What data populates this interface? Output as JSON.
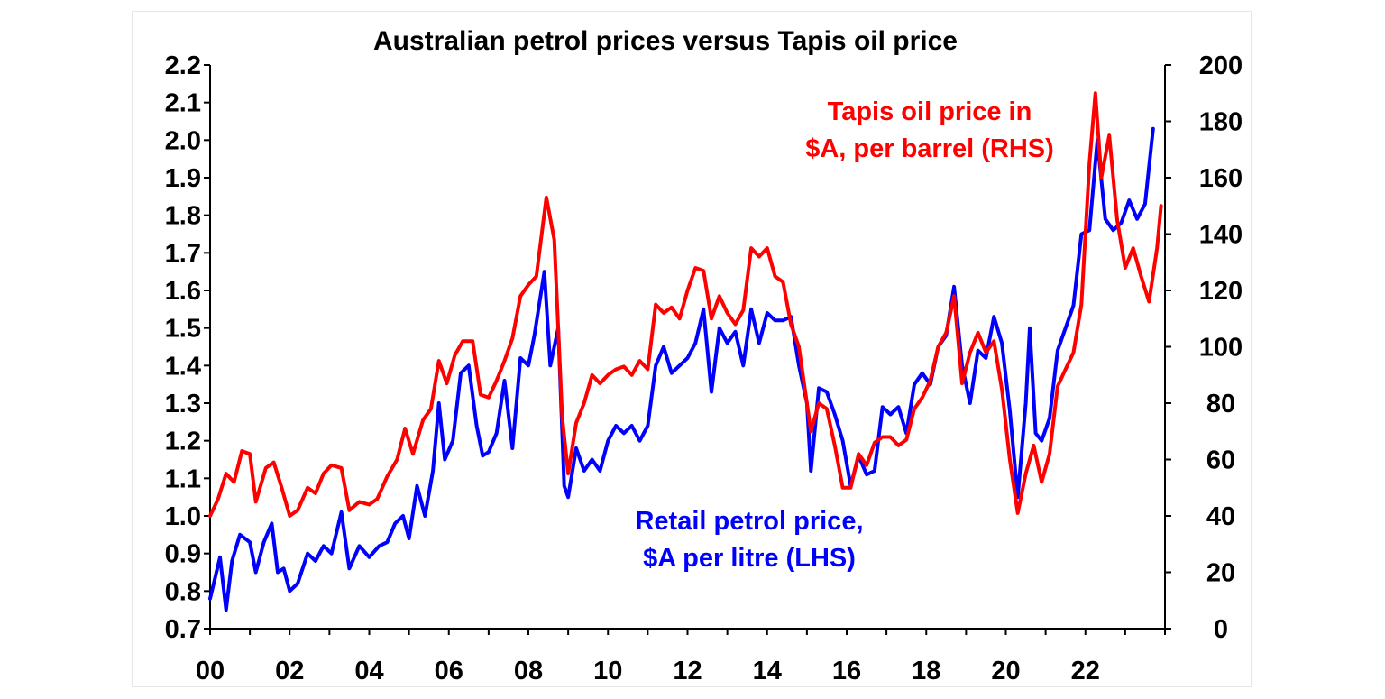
{
  "chart_data": {
    "type": "line",
    "title": "Australian petrol prices versus Tapis oil price",
    "x_ticks": [
      "00",
      "02",
      "04",
      "06",
      "08",
      "10",
      "12",
      "14",
      "16",
      "18",
      "20",
      "22"
    ],
    "xlim": [
      2000,
      2024
    ],
    "y_left": {
      "ticks": [
        "0.7",
        "0.8",
        "0.9",
        "1.0",
        "1.1",
        "1.2",
        "1.3",
        "1.4",
        "1.5",
        "1.6",
        "1.7",
        "1.8",
        "1.9",
        "2.0",
        "2.1",
        "2.2"
      ],
      "ylim": [
        0.7,
        2.2
      ]
    },
    "y_right": {
      "ticks": [
        "0",
        "20",
        "40",
        "60",
        "80",
        "100",
        "120",
        "140",
        "160",
        "180",
        "200"
      ],
      "ylim": [
        0,
        200
      ]
    },
    "grid": false,
    "series": [
      {
        "name": "Retail petrol price, $A per litre (LHS)",
        "axis": "left",
        "color": "#0000ff",
        "points": [
          [
            2000.0,
            0.78
          ],
          [
            2000.25,
            0.89
          ],
          [
            2000.4,
            0.75
          ],
          [
            2000.55,
            0.88
          ],
          [
            2000.75,
            0.95
          ],
          [
            2001.0,
            0.93
          ],
          [
            2001.15,
            0.85
          ],
          [
            2001.35,
            0.93
          ],
          [
            2001.55,
            0.98
          ],
          [
            2001.7,
            0.85
          ],
          [
            2001.85,
            0.86
          ],
          [
            2002.0,
            0.8
          ],
          [
            2002.2,
            0.82
          ],
          [
            2002.45,
            0.9
          ],
          [
            2002.65,
            0.88
          ],
          [
            2002.85,
            0.92
          ],
          [
            2003.05,
            0.9
          ],
          [
            2003.3,
            1.01
          ],
          [
            2003.5,
            0.86
          ],
          [
            2003.75,
            0.92
          ],
          [
            2004.0,
            0.89
          ],
          [
            2004.25,
            0.92
          ],
          [
            2004.45,
            0.93
          ],
          [
            2004.65,
            0.98
          ],
          [
            2004.85,
            1.0
          ],
          [
            2005.0,
            0.94
          ],
          [
            2005.2,
            1.08
          ],
          [
            2005.4,
            1.0
          ],
          [
            2005.6,
            1.12
          ],
          [
            2005.75,
            1.3
          ],
          [
            2005.9,
            1.15
          ],
          [
            2006.1,
            1.2
          ],
          [
            2006.3,
            1.38
          ],
          [
            2006.5,
            1.4
          ],
          [
            2006.7,
            1.24
          ],
          [
            2006.85,
            1.16
          ],
          [
            2007.0,
            1.17
          ],
          [
            2007.2,
            1.22
          ],
          [
            2007.4,
            1.36
          ],
          [
            2007.6,
            1.18
          ],
          [
            2007.8,
            1.42
          ],
          [
            2008.0,
            1.4
          ],
          [
            2008.15,
            1.48
          ],
          [
            2008.4,
            1.65
          ],
          [
            2008.55,
            1.4
          ],
          [
            2008.75,
            1.5
          ],
          [
            2008.9,
            1.08
          ],
          [
            2009.0,
            1.05
          ],
          [
            2009.2,
            1.18
          ],
          [
            2009.4,
            1.12
          ],
          [
            2009.6,
            1.15
          ],
          [
            2009.8,
            1.12
          ],
          [
            2010.0,
            1.2
          ],
          [
            2010.2,
            1.24
          ],
          [
            2010.4,
            1.22
          ],
          [
            2010.6,
            1.24
          ],
          [
            2010.8,
            1.2
          ],
          [
            2011.0,
            1.24
          ],
          [
            2011.2,
            1.4
          ],
          [
            2011.4,
            1.45
          ],
          [
            2011.6,
            1.38
          ],
          [
            2011.8,
            1.4
          ],
          [
            2012.0,
            1.42
          ],
          [
            2012.2,
            1.46
          ],
          [
            2012.4,
            1.55
          ],
          [
            2012.6,
            1.33
          ],
          [
            2012.8,
            1.5
          ],
          [
            2013.0,
            1.46
          ],
          [
            2013.2,
            1.49
          ],
          [
            2013.4,
            1.4
          ],
          [
            2013.6,
            1.55
          ],
          [
            2013.8,
            1.46
          ],
          [
            2014.0,
            1.54
          ],
          [
            2014.2,
            1.52
          ],
          [
            2014.4,
            1.52
          ],
          [
            2014.6,
            1.53
          ],
          [
            2014.8,
            1.4
          ],
          [
            2015.0,
            1.3
          ],
          [
            2015.1,
            1.12
          ],
          [
            2015.3,
            1.34
          ],
          [
            2015.5,
            1.33
          ],
          [
            2015.7,
            1.27
          ],
          [
            2015.9,
            1.2
          ],
          [
            2016.1,
            1.08
          ],
          [
            2016.3,
            1.16
          ],
          [
            2016.5,
            1.11
          ],
          [
            2016.7,
            1.12
          ],
          [
            2016.9,
            1.29
          ],
          [
            2017.1,
            1.27
          ],
          [
            2017.3,
            1.29
          ],
          [
            2017.5,
            1.22
          ],
          [
            2017.7,
            1.35
          ],
          [
            2017.9,
            1.38
          ],
          [
            2018.1,
            1.35
          ],
          [
            2018.3,
            1.45
          ],
          [
            2018.5,
            1.48
          ],
          [
            2018.7,
            1.61
          ],
          [
            2018.9,
            1.4
          ],
          [
            2019.1,
            1.3
          ],
          [
            2019.3,
            1.44
          ],
          [
            2019.5,
            1.42
          ],
          [
            2019.7,
            1.53
          ],
          [
            2019.9,
            1.46
          ],
          [
            2020.1,
            1.28
          ],
          [
            2020.3,
            1.05
          ],
          [
            2020.5,
            1.3
          ],
          [
            2020.6,
            1.5
          ],
          [
            2020.75,
            1.22
          ],
          [
            2020.9,
            1.2
          ],
          [
            2021.1,
            1.26
          ],
          [
            2021.3,
            1.44
          ],
          [
            2021.5,
            1.5
          ],
          [
            2021.7,
            1.56
          ],
          [
            2021.9,
            1.75
          ],
          [
            2022.1,
            1.76
          ],
          [
            2022.3,
            2.0
          ],
          [
            2022.5,
            1.79
          ],
          [
            2022.7,
            1.76
          ],
          [
            2022.9,
            1.78
          ],
          [
            2023.1,
            1.84
          ],
          [
            2023.3,
            1.79
          ],
          [
            2023.5,
            1.83
          ],
          [
            2023.7,
            2.03
          ]
        ]
      },
      {
        "name": "Tapis oil price in $A, per barrel (RHS)",
        "axis": "right",
        "color": "#ff0000",
        "points": [
          [
            2000.0,
            40
          ],
          [
            2000.2,
            46
          ],
          [
            2000.4,
            55
          ],
          [
            2000.6,
            52
          ],
          [
            2000.8,
            63
          ],
          [
            2001.0,
            62
          ],
          [
            2001.15,
            45
          ],
          [
            2001.4,
            57
          ],
          [
            2001.6,
            59
          ],
          [
            2001.8,
            50
          ],
          [
            2002.0,
            40
          ],
          [
            2002.2,
            42
          ],
          [
            2002.45,
            50
          ],
          [
            2002.65,
            48
          ],
          [
            2002.85,
            55
          ],
          [
            2003.05,
            58
          ],
          [
            2003.3,
            57
          ],
          [
            2003.5,
            42
          ],
          [
            2003.75,
            45
          ],
          [
            2004.0,
            44
          ],
          [
            2004.2,
            46
          ],
          [
            2004.45,
            54
          ],
          [
            2004.7,
            60
          ],
          [
            2004.9,
            71
          ],
          [
            2005.1,
            62
          ],
          [
            2005.35,
            74
          ],
          [
            2005.55,
            78
          ],
          [
            2005.75,
            95
          ],
          [
            2005.95,
            87
          ],
          [
            2006.15,
            97
          ],
          [
            2006.35,
            102
          ],
          [
            2006.6,
            102
          ],
          [
            2006.8,
            83
          ],
          [
            2007.0,
            82
          ],
          [
            2007.2,
            88
          ],
          [
            2007.4,
            95
          ],
          [
            2007.6,
            103
          ],
          [
            2007.8,
            118
          ],
          [
            2008.0,
            122
          ],
          [
            2008.2,
            125
          ],
          [
            2008.45,
            153
          ],
          [
            2008.65,
            138
          ],
          [
            2008.85,
            75
          ],
          [
            2009.0,
            55
          ],
          [
            2009.2,
            73
          ],
          [
            2009.4,
            80
          ],
          [
            2009.6,
            90
          ],
          [
            2009.8,
            87
          ],
          [
            2010.0,
            90
          ],
          [
            2010.2,
            92
          ],
          [
            2010.4,
            93
          ],
          [
            2010.6,
            90
          ],
          [
            2010.8,
            95
          ],
          [
            2011.0,
            92
          ],
          [
            2011.2,
            115
          ],
          [
            2011.4,
            112
          ],
          [
            2011.6,
            114
          ],
          [
            2011.8,
            110
          ],
          [
            2012.0,
            120
          ],
          [
            2012.2,
            128
          ],
          [
            2012.4,
            127
          ],
          [
            2012.6,
            110
          ],
          [
            2012.8,
            118
          ],
          [
            2013.0,
            112
          ],
          [
            2013.2,
            108
          ],
          [
            2013.4,
            113
          ],
          [
            2013.6,
            135
          ],
          [
            2013.8,
            132
          ],
          [
            2014.0,
            135
          ],
          [
            2014.2,
            125
          ],
          [
            2014.4,
            123
          ],
          [
            2014.6,
            108
          ],
          [
            2014.8,
            100
          ],
          [
            2015.0,
            80
          ],
          [
            2015.1,
            70
          ],
          [
            2015.3,
            80
          ],
          [
            2015.5,
            78
          ],
          [
            2015.7,
            65
          ],
          [
            2015.9,
            50
          ],
          [
            2016.1,
            50
          ],
          [
            2016.3,
            62
          ],
          [
            2016.5,
            58
          ],
          [
            2016.7,
            66
          ],
          [
            2016.9,
            68
          ],
          [
            2017.1,
            68
          ],
          [
            2017.3,
            65
          ],
          [
            2017.5,
            67
          ],
          [
            2017.7,
            78
          ],
          [
            2017.9,
            82
          ],
          [
            2018.1,
            88
          ],
          [
            2018.3,
            100
          ],
          [
            2018.5,
            105
          ],
          [
            2018.7,
            118
          ],
          [
            2018.9,
            87
          ],
          [
            2019.1,
            98
          ],
          [
            2019.3,
            105
          ],
          [
            2019.5,
            98
          ],
          [
            2019.7,
            102
          ],
          [
            2019.9,
            85
          ],
          [
            2020.1,
            60
          ],
          [
            2020.3,
            41
          ],
          [
            2020.5,
            55
          ],
          [
            2020.7,
            65
          ],
          [
            2020.9,
            52
          ],
          [
            2021.1,
            62
          ],
          [
            2021.3,
            86
          ],
          [
            2021.5,
            92
          ],
          [
            2021.7,
            98
          ],
          [
            2021.9,
            115
          ],
          [
            2022.1,
            165
          ],
          [
            2022.25,
            190
          ],
          [
            2022.4,
            160
          ],
          [
            2022.6,
            175
          ],
          [
            2022.8,
            145
          ],
          [
            2023.0,
            128
          ],
          [
            2023.2,
            135
          ],
          [
            2023.4,
            125
          ],
          [
            2023.6,
            116
          ],
          [
            2023.8,
            135
          ],
          [
            2023.9,
            150
          ]
        ]
      }
    ],
    "annotations": {
      "oil_line1": "Tapis oil price in",
      "oil_line2": "$A, per barrel (RHS)",
      "petrol_line1": "Retail petrol price,",
      "petrol_line2": "$A per litre (LHS)"
    }
  }
}
